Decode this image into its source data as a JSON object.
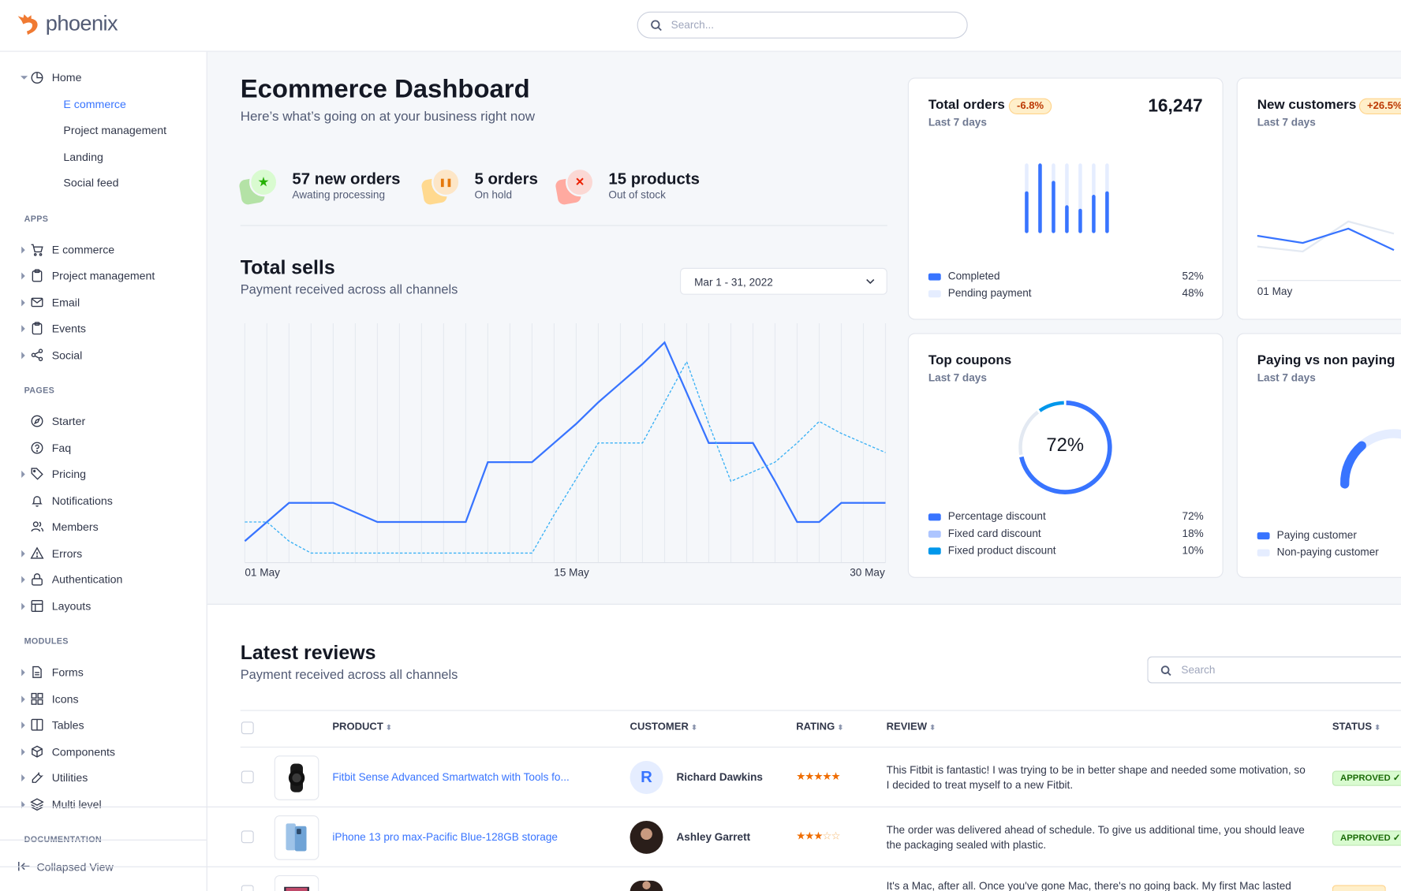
{
  "app": {
    "logo_text": "phoenix",
    "search_placeholder": "Search..."
  },
  "colors": {
    "accent": "#3874ff",
    "text": "#31374a",
    "muted": "#525b75",
    "success": "#25b003",
    "warning": "#e5780b",
    "danger": "#ec1f00",
    "info": "#0097eb"
  },
  "sidebar": {
    "sections": [
      {
        "label": "",
        "items": [
          {
            "label": "Home",
            "icon": "pie-chart-icon",
            "caret": "down"
          },
          {
            "label": "E commerce",
            "sub": true,
            "active": true
          },
          {
            "label": "Project management",
            "sub": true
          },
          {
            "label": "Landing",
            "sub": true
          },
          {
            "label": "Social feed",
            "sub": true
          }
        ]
      },
      {
        "label": "APPS",
        "items": [
          {
            "label": "E commerce",
            "icon": "cart-icon",
            "caret": "right"
          },
          {
            "label": "Project management",
            "icon": "clipboard-icon",
            "caret": "right"
          },
          {
            "label": "Email",
            "icon": "mail-icon",
            "caret": "right"
          },
          {
            "label": "Events",
            "icon": "bookmark-icon",
            "caret": "right"
          },
          {
            "label": "Social",
            "icon": "share-icon",
            "caret": "right"
          }
        ]
      },
      {
        "label": "PAGES",
        "items": [
          {
            "label": "Starter",
            "icon": "compass-icon"
          },
          {
            "label": "Faq",
            "icon": "help-circle-icon"
          },
          {
            "label": "Pricing",
            "icon": "tag-icon",
            "caret": "right"
          },
          {
            "label": "Notifications",
            "icon": "bell-icon"
          },
          {
            "label": "Members",
            "icon": "users-icon"
          },
          {
            "label": "Errors",
            "icon": "alert-triangle-icon",
            "caret": "right"
          },
          {
            "label": "Authentication",
            "icon": "lock-icon",
            "caret": "right"
          },
          {
            "label": "Layouts",
            "icon": "layout-icon",
            "caret": "right"
          }
        ]
      },
      {
        "label": "MODULES",
        "items": [
          {
            "label": "Forms",
            "icon": "file-text-icon",
            "caret": "right"
          },
          {
            "label": "Icons",
            "icon": "grid-icon",
            "caret": "right"
          },
          {
            "label": "Tables",
            "icon": "columns-icon",
            "caret": "right"
          },
          {
            "label": "Components",
            "icon": "package-icon",
            "caret": "right"
          },
          {
            "label": "Utilities",
            "icon": "tool-icon",
            "caret": "right"
          },
          {
            "label": "Multi level",
            "icon": "layers-icon",
            "caret": "right"
          }
        ]
      },
      {
        "label": "DOCUMENTATION",
        "items": []
      }
    ],
    "collapse_label": "Collapsed View"
  },
  "header": {
    "title": "Ecommerce Dashboard",
    "subtitle": "Here’s what’s going on at your business right now"
  },
  "stats": [
    {
      "title": "57 new orders",
      "subtitle": "Awating processing",
      "icon": "star-icon",
      "color": "#25b003"
    },
    {
      "title": "5 orders",
      "subtitle": "On hold",
      "icon": "pause-icon",
      "color": "#e5780b"
    },
    {
      "title": "15 products",
      "subtitle": "Out of stock",
      "icon": "x-icon",
      "color": "#ec1f00"
    }
  ],
  "total_sells": {
    "title": "Total sells",
    "subtitle": "Payment received across all channels",
    "date_range": "Mar 1 - 31, 2022"
  },
  "cards": {
    "total_orders": {
      "title": "Total orders",
      "badge": "-6.8%",
      "value": "16,247",
      "subtitle": "Last 7 days",
      "legend": [
        {
          "name": "Completed",
          "value": "52%",
          "color": "#3874ff"
        },
        {
          "name": "Pending payment",
          "value": "48%",
          "color": "#e5edff"
        }
      ]
    },
    "new_customers": {
      "title": "New customers",
      "badge": "+26.5%",
      "subtitle": "Last 7 days",
      "x_label": "01 May"
    },
    "top_coupons": {
      "title": "Top coupons",
      "subtitle": "Last 7 days",
      "center_label": "72%",
      "legend": [
        {
          "name": "Percentage discount",
          "value": "72%",
          "color": "#3874ff"
        },
        {
          "name": "Fixed card discount",
          "value": "18%",
          "color": "#adc5ff"
        },
        {
          "name": "Fixed product discount",
          "value": "10%",
          "color": "#0097eb"
        }
      ]
    },
    "paying": {
      "title": "Paying vs non paying",
      "subtitle": "Last 7 days",
      "legend": [
        {
          "name": "Paying customer",
          "color": "#3874ff"
        },
        {
          "name": "Non-paying customer",
          "color": "#e5edff"
        }
      ]
    }
  },
  "chart_data": [
    {
      "type": "line",
      "x_tick_labels": [
        "01 May",
        "15 May",
        "30 May"
      ],
      "x": [
        1,
        2,
        3,
        4,
        5,
        6,
        7,
        8,
        9,
        10,
        11,
        12,
        13,
        14,
        15,
        16,
        17,
        18,
        19,
        20,
        21,
        22,
        23,
        24,
        25,
        26,
        27,
        28,
        29,
        30
      ],
      "ylim": [
        0,
        100
      ],
      "grid": "vertical",
      "series": [
        {
          "style": "solid",
          "color": "#3874ff",
          "values": [
            9,
            17,
            25,
            25,
            25,
            21,
            17,
            17,
            17,
            17,
            17,
            42,
            42,
            42,
            50,
            58,
            67,
            75,
            83,
            92,
            71,
            50,
            50,
            50,
            34,
            17,
            17,
            25,
            25,
            25
          ]
        },
        {
          "style": "dashed",
          "color": "#3bb1f5",
          "values": [
            17,
            17,
            9,
            4,
            4,
            4,
            4,
            4,
            4,
            4,
            4,
            4,
            4,
            4,
            20,
            35,
            50,
            50,
            50,
            67,
            84,
            58,
            34,
            38,
            42,
            50,
            59,
            54,
            50,
            46
          ]
        }
      ]
    },
    {
      "type": "bar",
      "stacked": true,
      "categories": [
        1,
        2,
        3,
        4,
        5,
        6,
        7
      ],
      "series": [
        {
          "name": "Completed",
          "values": [
            60,
            100,
            75,
            40,
            35,
            55,
            60
          ]
        },
        {
          "name": "Pending payment",
          "values": [
            40,
            0,
            25,
            60,
            65,
            45,
            40
          ]
        }
      ]
    },
    {
      "type": "line",
      "x_tick_labels": [
        "01 May"
      ],
      "series": [
        {
          "color": "#3874ff",
          "values": [
            55,
            45,
            65,
            35
          ]
        },
        {
          "color": "#e3e9f2",
          "values": [
            40,
            33,
            75,
            58
          ]
        }
      ]
    },
    {
      "type": "pie",
      "donut": true,
      "categories": [
        "Percentage discount",
        "Fixed card discount",
        "Fixed product discount"
      ],
      "values": [
        72,
        18,
        10
      ]
    }
  ],
  "reviews": {
    "title": "Latest reviews",
    "subtitle": "Payment received across all channels",
    "search_placeholder": "Search",
    "columns": [
      "PRODUCT",
      "CUSTOMER",
      "RATING",
      "REVIEW",
      "STATUS"
    ],
    "rows": [
      {
        "product": "Fitbit Sense Advanced Smartwatch with Tools fo...",
        "product_icon": "smartwatch-image",
        "customer": "Richard Dawkins",
        "avatar_initial": "R",
        "rating": 5,
        "review": "This Fitbit is fantastic! I was trying to be in better shape and needed some motivation, so I decided to treat myself to a new Fitbit.",
        "status": "APPROVED",
        "status_type": "approved"
      },
      {
        "product": "iPhone 13 pro max-Pacific Blue-128GB storage",
        "product_icon": "phone-image",
        "customer": "Ashley Garrett",
        "avatar_initial": "",
        "rating": 3,
        "review": "The order was delivered ahead of schedule. To give us additional time, you should leave the packaging sealed with plastic.",
        "status": "APPROVED",
        "status_type": "approved"
      },
      {
        "product": "",
        "product_icon": "laptop-image",
        "customer": "",
        "avatar_initial": "",
        "rating": 0,
        "review": "It's a Mac, after all. Once you've gone Mac, there's no going back. My first Mac lasted",
        "status": "",
        "status_type": "pending"
      }
    ]
  }
}
